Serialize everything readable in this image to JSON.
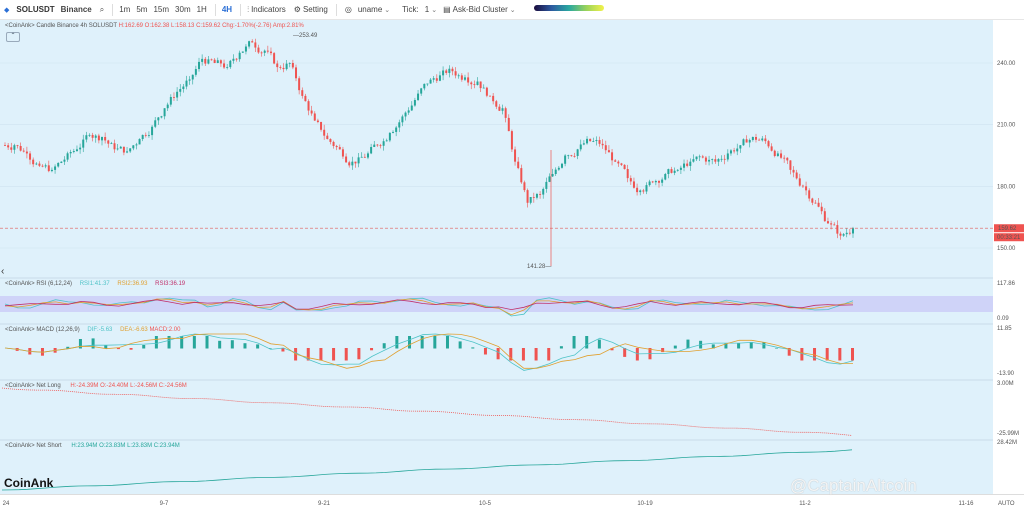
{
  "toolbar": {
    "symbol": "SOLUSDT",
    "exchange": "Binance",
    "timeframes": [
      "1m",
      "5m",
      "15m",
      "30m",
      "1H",
      "4H"
    ],
    "active_timeframe": "4H",
    "indicators_label": "Indicators",
    "setting_label": "Setting",
    "user_label": "uname",
    "tick_label": "Tick:",
    "tick_value": "1",
    "cluster_label": "Ask-Bid Cluster"
  },
  "panels": {
    "candle": {
      "label": "<CoinAnk> Candle",
      "symbol_info": "Binance 4h SOLUSDT",
      "h": "H:162.69",
      "o": "O:162.38",
      "l": "L:158.13",
      "c": "C:159.62",
      "chg": "Chg:-1.70%(-2.76)",
      "amp": "Amp:2.81%"
    },
    "rsi": {
      "label": "<CoinAnk> RSI",
      "params": "(6,12,24)",
      "rsi1": "RSI1:41.37",
      "rsi2": "RSI2:36.93",
      "rsi3": "RSI3:36.19"
    },
    "macd": {
      "label": "<CoinAnk> MACD",
      "params": "(12,26,9)",
      "dif": "DIF:-5.63",
      "dea": "DEA:-6.63",
      "macd": "MACD:2.00"
    },
    "netlong": {
      "label": "<CoinAnk> Net Long",
      "h": "H:-24.39M",
      "o": "O:-24.40M",
      "l": "L:-24.56M",
      "c": "C:-24.56M"
    },
    "netshort": {
      "label": "<CoinAnk> Net Short",
      "h": "H:23.94M",
      "o": "O:23.83M",
      "l": "L:23.83M",
      "c": "C:23.94M"
    }
  },
  "axis": {
    "price_ticks": [
      "240.00",
      "210.00",
      "180.00",
      "150.00"
    ],
    "current_price": "159.62",
    "countdown": "00:33:21",
    "rsi_ticks": [
      "117.86",
      "0.09"
    ],
    "macd_ticks": [
      "11.85",
      "-13.90"
    ],
    "netlong_ticks": [
      "3.00M",
      "-25.99M"
    ],
    "netshort_ticks": [
      "28.42M"
    ],
    "auto_label": "AUTO"
  },
  "xaxis": {
    "ticks": [
      "24",
      "9-7",
      "9-21",
      "10-5",
      "10-19",
      "11-2",
      "11-16"
    ]
  },
  "annotations": {
    "high": "253.49",
    "low": "141.28"
  },
  "brand": "CoinAnk",
  "watermark": "@CaptainAltcoin",
  "colors": {
    "up": "#26a69a",
    "down": "#ef5350",
    "bg": "#dff1fb",
    "rsi_band": "#c8c6f7"
  },
  "chart_data": {
    "type": "candlestick",
    "x_ticks": [
      "24",
      "9-7",
      "9-21",
      "10-5",
      "10-19",
      "11-2",
      "11-16"
    ],
    "ylim": [
      141.28,
      253.49
    ],
    "close_series": [
      200,
      196,
      190,
      188,
      193,
      198,
      205,
      204,
      198,
      197,
      203,
      209,
      218,
      226,
      232,
      242,
      240,
      238,
      245,
      250,
      246,
      238,
      240,
      224,
      212,
      203,
      198,
      192,
      194,
      200,
      206,
      214,
      222,
      230,
      234,
      236,
      233,
      231,
      224,
      218,
      192,
      172,
      176,
      186,
      195,
      198,
      202,
      200,
      192,
      184,
      178,
      182,
      186,
      188,
      192,
      194,
      192,
      196,
      200,
      204,
      202,
      196,
      188,
      180,
      172,
      162,
      156,
      159.62
    ]
  }
}
